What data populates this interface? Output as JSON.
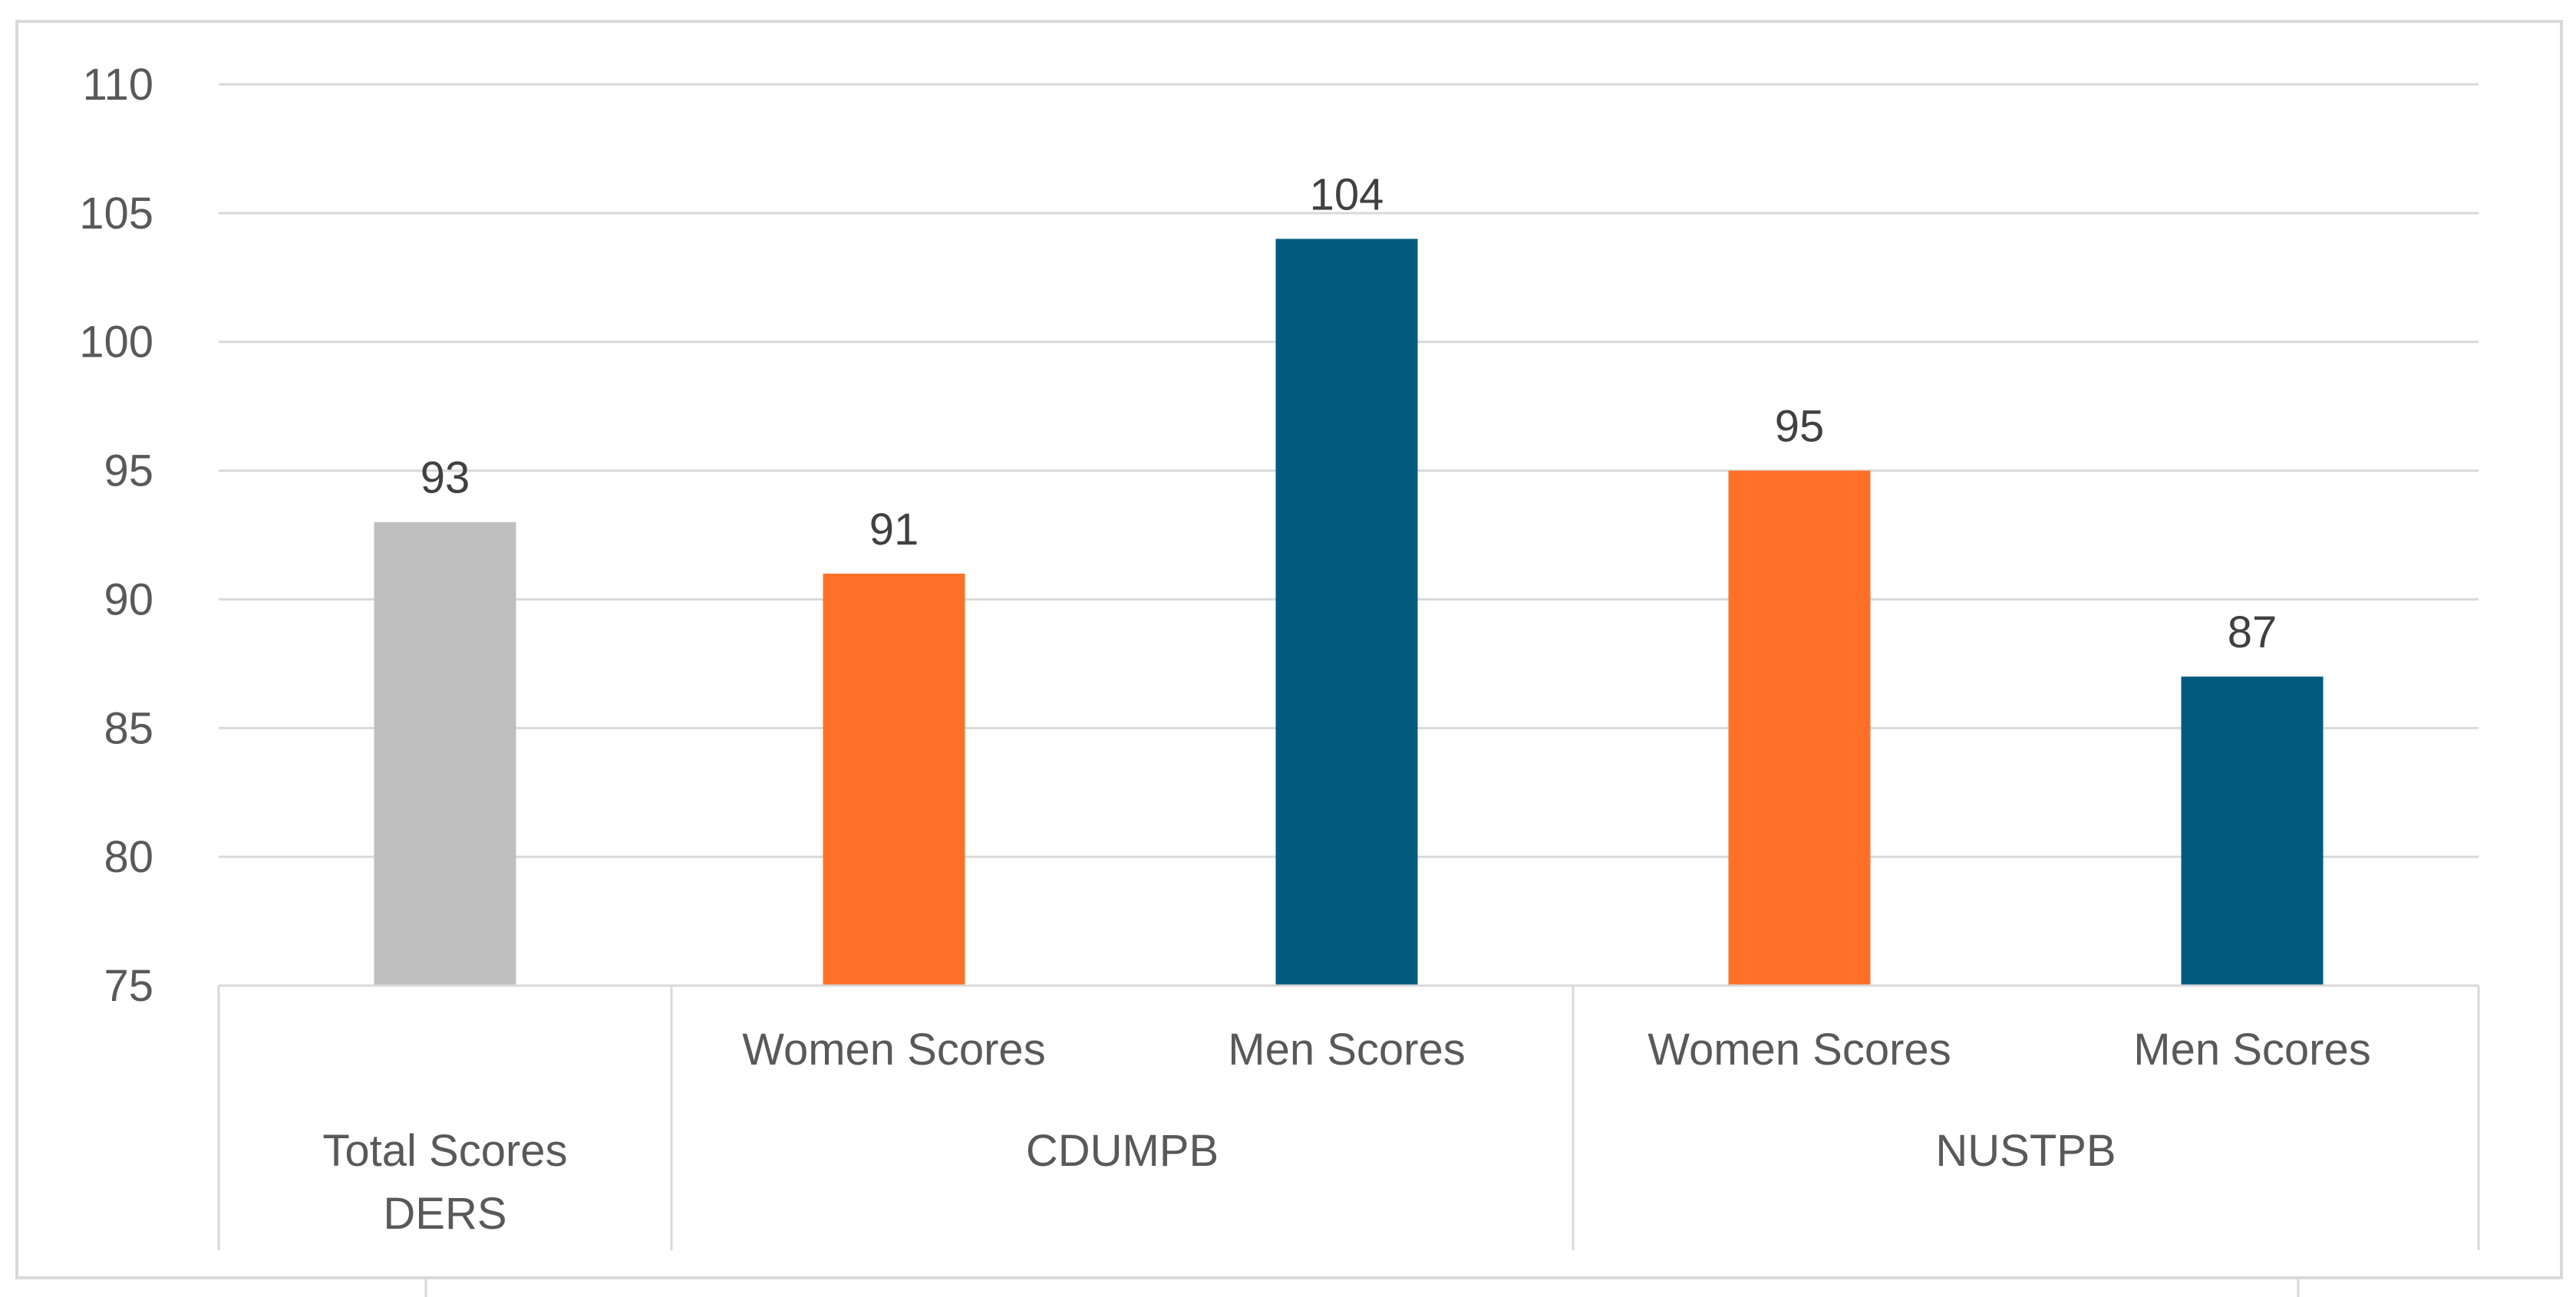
{
  "chart_data": {
    "type": "bar",
    "title": "",
    "ylim": [
      75,
      110
    ],
    "yticks": [
      75,
      80,
      85,
      90,
      95,
      100,
      105,
      110
    ],
    "grid": true,
    "legend": "none",
    "groups": [
      {
        "label_lines": [
          "Total Scores",
          "DERS"
        ],
        "categories": [
          "Total Scores DERS"
        ]
      },
      {
        "label_lines": [
          "CDUMPB"
        ],
        "categories": [
          "Women Scores",
          "Men Scores"
        ]
      },
      {
        "label_lines": [
          "NUSTPB"
        ],
        "categories": [
          "Women Scores",
          "Men Scores"
        ]
      }
    ],
    "bars": [
      {
        "group": 0,
        "category": "",
        "value": 93,
        "color": "#bfbfbf"
      },
      {
        "group": 1,
        "category": "Women Scores",
        "value": 91,
        "color": "#ff7128"
      },
      {
        "group": 1,
        "category": "Men Scores",
        "value": 104,
        "color": "#005b7f"
      },
      {
        "group": 2,
        "category": "Women Scores",
        "value": 95,
        "color": "#ff7128"
      },
      {
        "group": 2,
        "category": "Men Scores",
        "value": 87,
        "color": "#005b7f"
      }
    ]
  }
}
